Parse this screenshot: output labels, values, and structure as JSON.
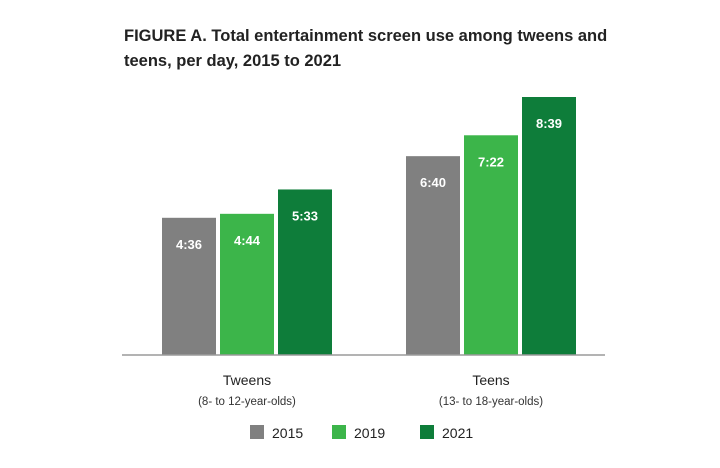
{
  "title": "FIGURE A. Total entertainment screen use among tweens and teens, per day, 2015 to 2021",
  "colors": {
    "2015": "#808080",
    "2019": "#3cb54a",
    "2021": "#0e7d3a"
  },
  "chart_data": {
    "type": "bar",
    "title": "FIGURE A. Total entertainment screen use among tweens and teens, per day, 2015 to 2021",
    "categories": [
      "Tweens",
      "Teens"
    ],
    "category_subtitles": [
      "(8- to 12-year-olds)",
      "(13- to 18-year-olds)"
    ],
    "series": [
      {
        "name": "2015",
        "values": [
          276,
          400
        ],
        "labels": [
          "4:36",
          "6:40"
        ]
      },
      {
        "name": "2019",
        "values": [
          284,
          442
        ],
        "labels": [
          "4:44",
          "7:22"
        ]
      },
      {
        "name": "2021",
        "values": [
          333,
          519
        ],
        "labels": [
          "5:33",
          "8:39"
        ]
      }
    ],
    "ylim": [
      0,
      519
    ],
    "grid": false,
    "legend": "bottom"
  }
}
